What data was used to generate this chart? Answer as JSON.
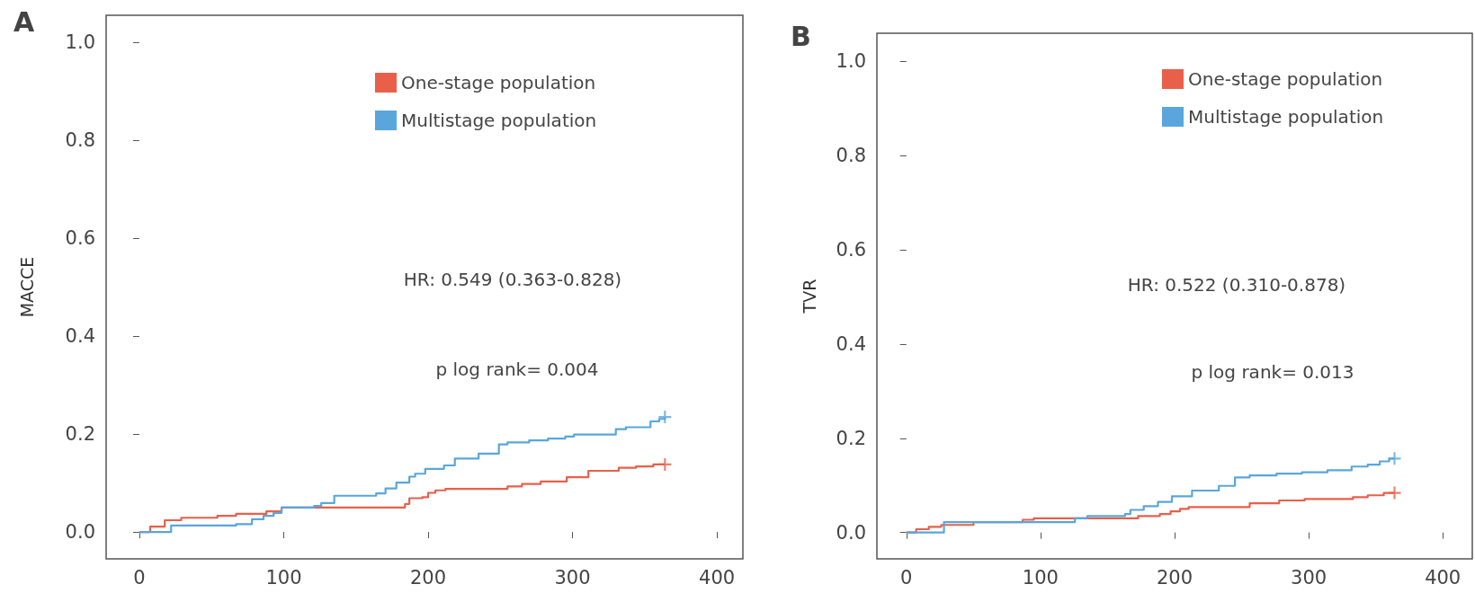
{
  "chart_data": [
    {
      "type": "step",
      "title": "A",
      "ylabel": "MACCE",
      "annotations": [
        "HR: 0.549 (0.363-0.828)",
        "p log rank= 0.004"
      ],
      "xlim": [
        -23,
        418
      ],
      "ylim": [
        -0.055,
        1.056
      ],
      "xticks": [
        0,
        100,
        200,
        300,
        400
      ],
      "yticks": [
        {
          "value": 0,
          "label": "0.0"
        },
        {
          "value": 0.2,
          "label": "0.2"
        },
        {
          "value": 0.4,
          "label": "0.4"
        },
        {
          "value": 0.6,
          "label": "0.6"
        },
        {
          "value": 0.8,
          "label": "0.8"
        },
        {
          "value": 1,
          "label": "1.0"
        }
      ],
      "grid": false,
      "legend": "top right",
      "line_style": "solid",
      "series": [
        {
          "name": "One-stage population",
          "color": "#e8604a",
          "x": [
            0,
            7.5,
            17.6,
            29,
            54,
            67,
            88,
            98.5,
            184,
            187,
            196,
            200,
            205,
            212,
            255,
            265,
            278,
            296,
            311,
            332,
            344,
            356,
            364
          ],
          "values": [
            0,
            0.011,
            0.024,
            0.029,
            0.033,
            0.037,
            0.042,
            0.05,
            0.057,
            0.069,
            0.071,
            0.08,
            0.085,
            0.088,
            0.093,
            0.098,
            0.103,
            0.112,
            0.125,
            0.131,
            0.134,
            0.138,
            0.138
          ]
        },
        {
          "name": "Multistage population",
          "color": "#5aa6dc",
          "x": [
            0,
            22,
            67,
            78,
            86,
            93,
            98.5,
            121,
            126,
            135,
            164,
            170.5,
            178,
            187,
            191,
            198,
            211,
            218.5,
            235,
            249,
            255,
            270,
            283,
            295,
            301,
            330,
            337,
            354,
            360,
            364
          ],
          "values": [
            0,
            0.013,
            0.016,
            0.026,
            0.033,
            0.039,
            0.05,
            0.053,
            0.059,
            0.074,
            0.079,
            0.089,
            0.101,
            0.113,
            0.119,
            0.129,
            0.136,
            0.15,
            0.16,
            0.179,
            0.183,
            0.187,
            0.191,
            0.195,
            0.199,
            0.21,
            0.214,
            0.226,
            0.231,
            0.235
          ]
        },
        {
          "type": "scatter",
          "marker": "cross",
          "color": "#e8604a",
          "x": [
            364
          ],
          "values": [
            0.138
          ]
        },
        {
          "type": "scatter",
          "marker": "cross",
          "color": "#5aa6dc",
          "x": [
            364
          ],
          "values": [
            0.235
          ]
        }
      ]
    },
    {
      "type": "step",
      "title": "B",
      "ylabel": "TVR",
      "annotations": [
        "HR: 0.522 (0.310-0.878)",
        "p log rank= 0.013"
      ],
      "xlim": [
        -22,
        422
      ],
      "ylim": [
        -0.056,
        1.06
      ],
      "xticks": [
        0,
        100,
        200,
        300,
        400
      ],
      "yticks": [
        {
          "value": 0,
          "label": "0.0"
        },
        {
          "value": 0.2,
          "label": "0.2"
        },
        {
          "value": 0.4,
          "label": "0.4"
        },
        {
          "value": 0.6,
          "label": "0.6"
        },
        {
          "value": 0.8,
          "label": "0.8"
        },
        {
          "value": 1,
          "label": "1.0"
        }
      ],
      "grid": false,
      "legend": "top right",
      "line_style": "solid",
      "series": [
        {
          "name": "One-stage population",
          "color": "#e8604a",
          "x": [
            0,
            7.3,
            16.7,
            26,
            50,
            86.7,
            95,
            172.8,
            189,
            197,
            204,
            210.5,
            256,
            278,
            297,
            333,
            344,
            356,
            364
          ],
          "values": [
            0,
            0.007,
            0.012,
            0.016,
            0.022,
            0.027,
            0.03,
            0.035,
            0.039,
            0.045,
            0.05,
            0.054,
            0.062,
            0.068,
            0.071,
            0.075,
            0.079,
            0.084,
            0.084
          ]
        },
        {
          "name": "Multistage population",
          "color": "#5aa6dc",
          "x": [
            0,
            28,
            125.7,
            135,
            163,
            167,
            177,
            187.6,
            198,
            213,
            233,
            245,
            256,
            276,
            295,
            314,
            332,
            344,
            353,
            360,
            364
          ],
          "values": [
            0,
            0.022,
            0.03,
            0.035,
            0.039,
            0.048,
            0.056,
            0.065,
            0.077,
            0.089,
            0.099,
            0.117,
            0.121,
            0.125,
            0.128,
            0.132,
            0.14,
            0.144,
            0.151,
            0.157,
            0.157
          ]
        },
        {
          "type": "scatter",
          "marker": "cross",
          "color": "#e8604a",
          "x": [
            364
          ],
          "values": [
            0.084
          ]
        },
        {
          "type": "scatter",
          "marker": "cross",
          "color": "#5aa6dc",
          "x": [
            364
          ],
          "values": [
            0.157
          ]
        }
      ]
    }
  ]
}
